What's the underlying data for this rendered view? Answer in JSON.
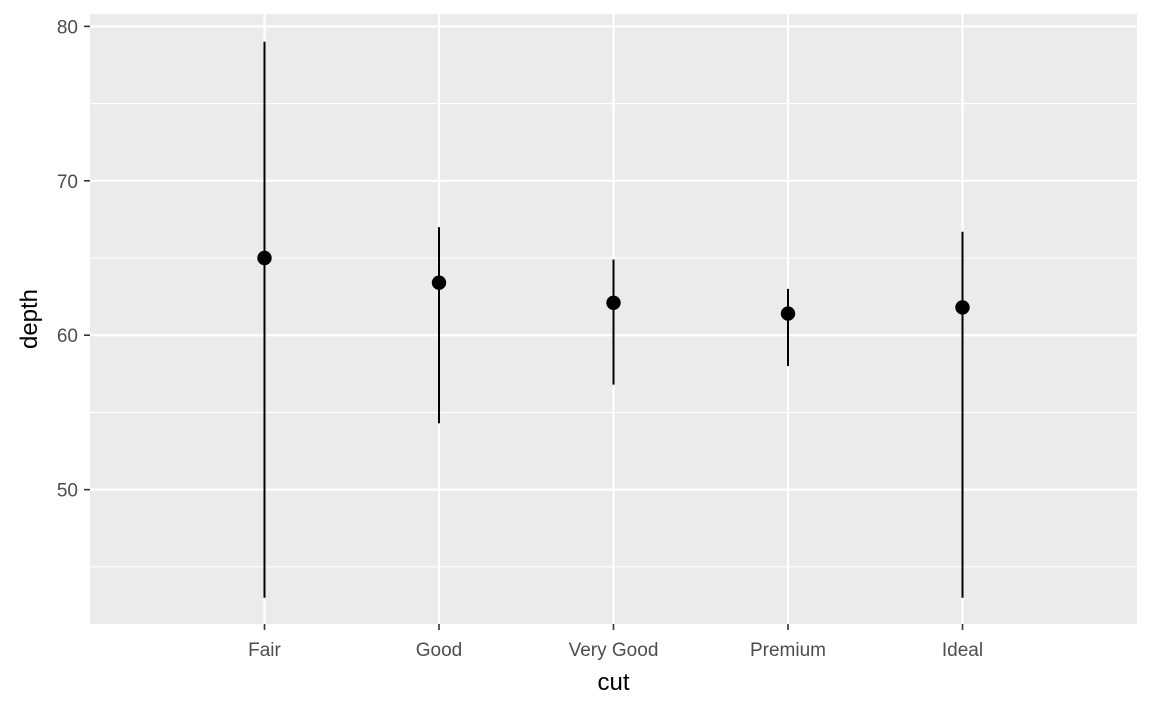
{
  "chart_data": {
    "type": "pointrange",
    "title": "",
    "xlabel": "cut",
    "ylabel": "depth",
    "categories": [
      "Fair",
      "Good",
      "Very Good",
      "Premium",
      "Ideal"
    ],
    "series": [
      {
        "values": [
          65.0,
          63.4,
          62.1,
          61.4,
          61.8
        ],
        "ymin": [
          43.0,
          54.3,
          56.8,
          58.0,
          43.0
        ],
        "ymax": [
          79.0,
          67.0,
          64.9,
          63.0,
          66.7
        ]
      }
    ],
    "ylim": [
      41.3,
      80.8
    ],
    "yticks": [
      50,
      60,
      70,
      80
    ],
    "grid": true,
    "legend": "none",
    "colors": {
      "panel": "#ebebeb",
      "grid": "#ffffff",
      "mark": "#000000",
      "tick_text": "#4d4d4d",
      "tick_line": "#333333"
    }
  }
}
